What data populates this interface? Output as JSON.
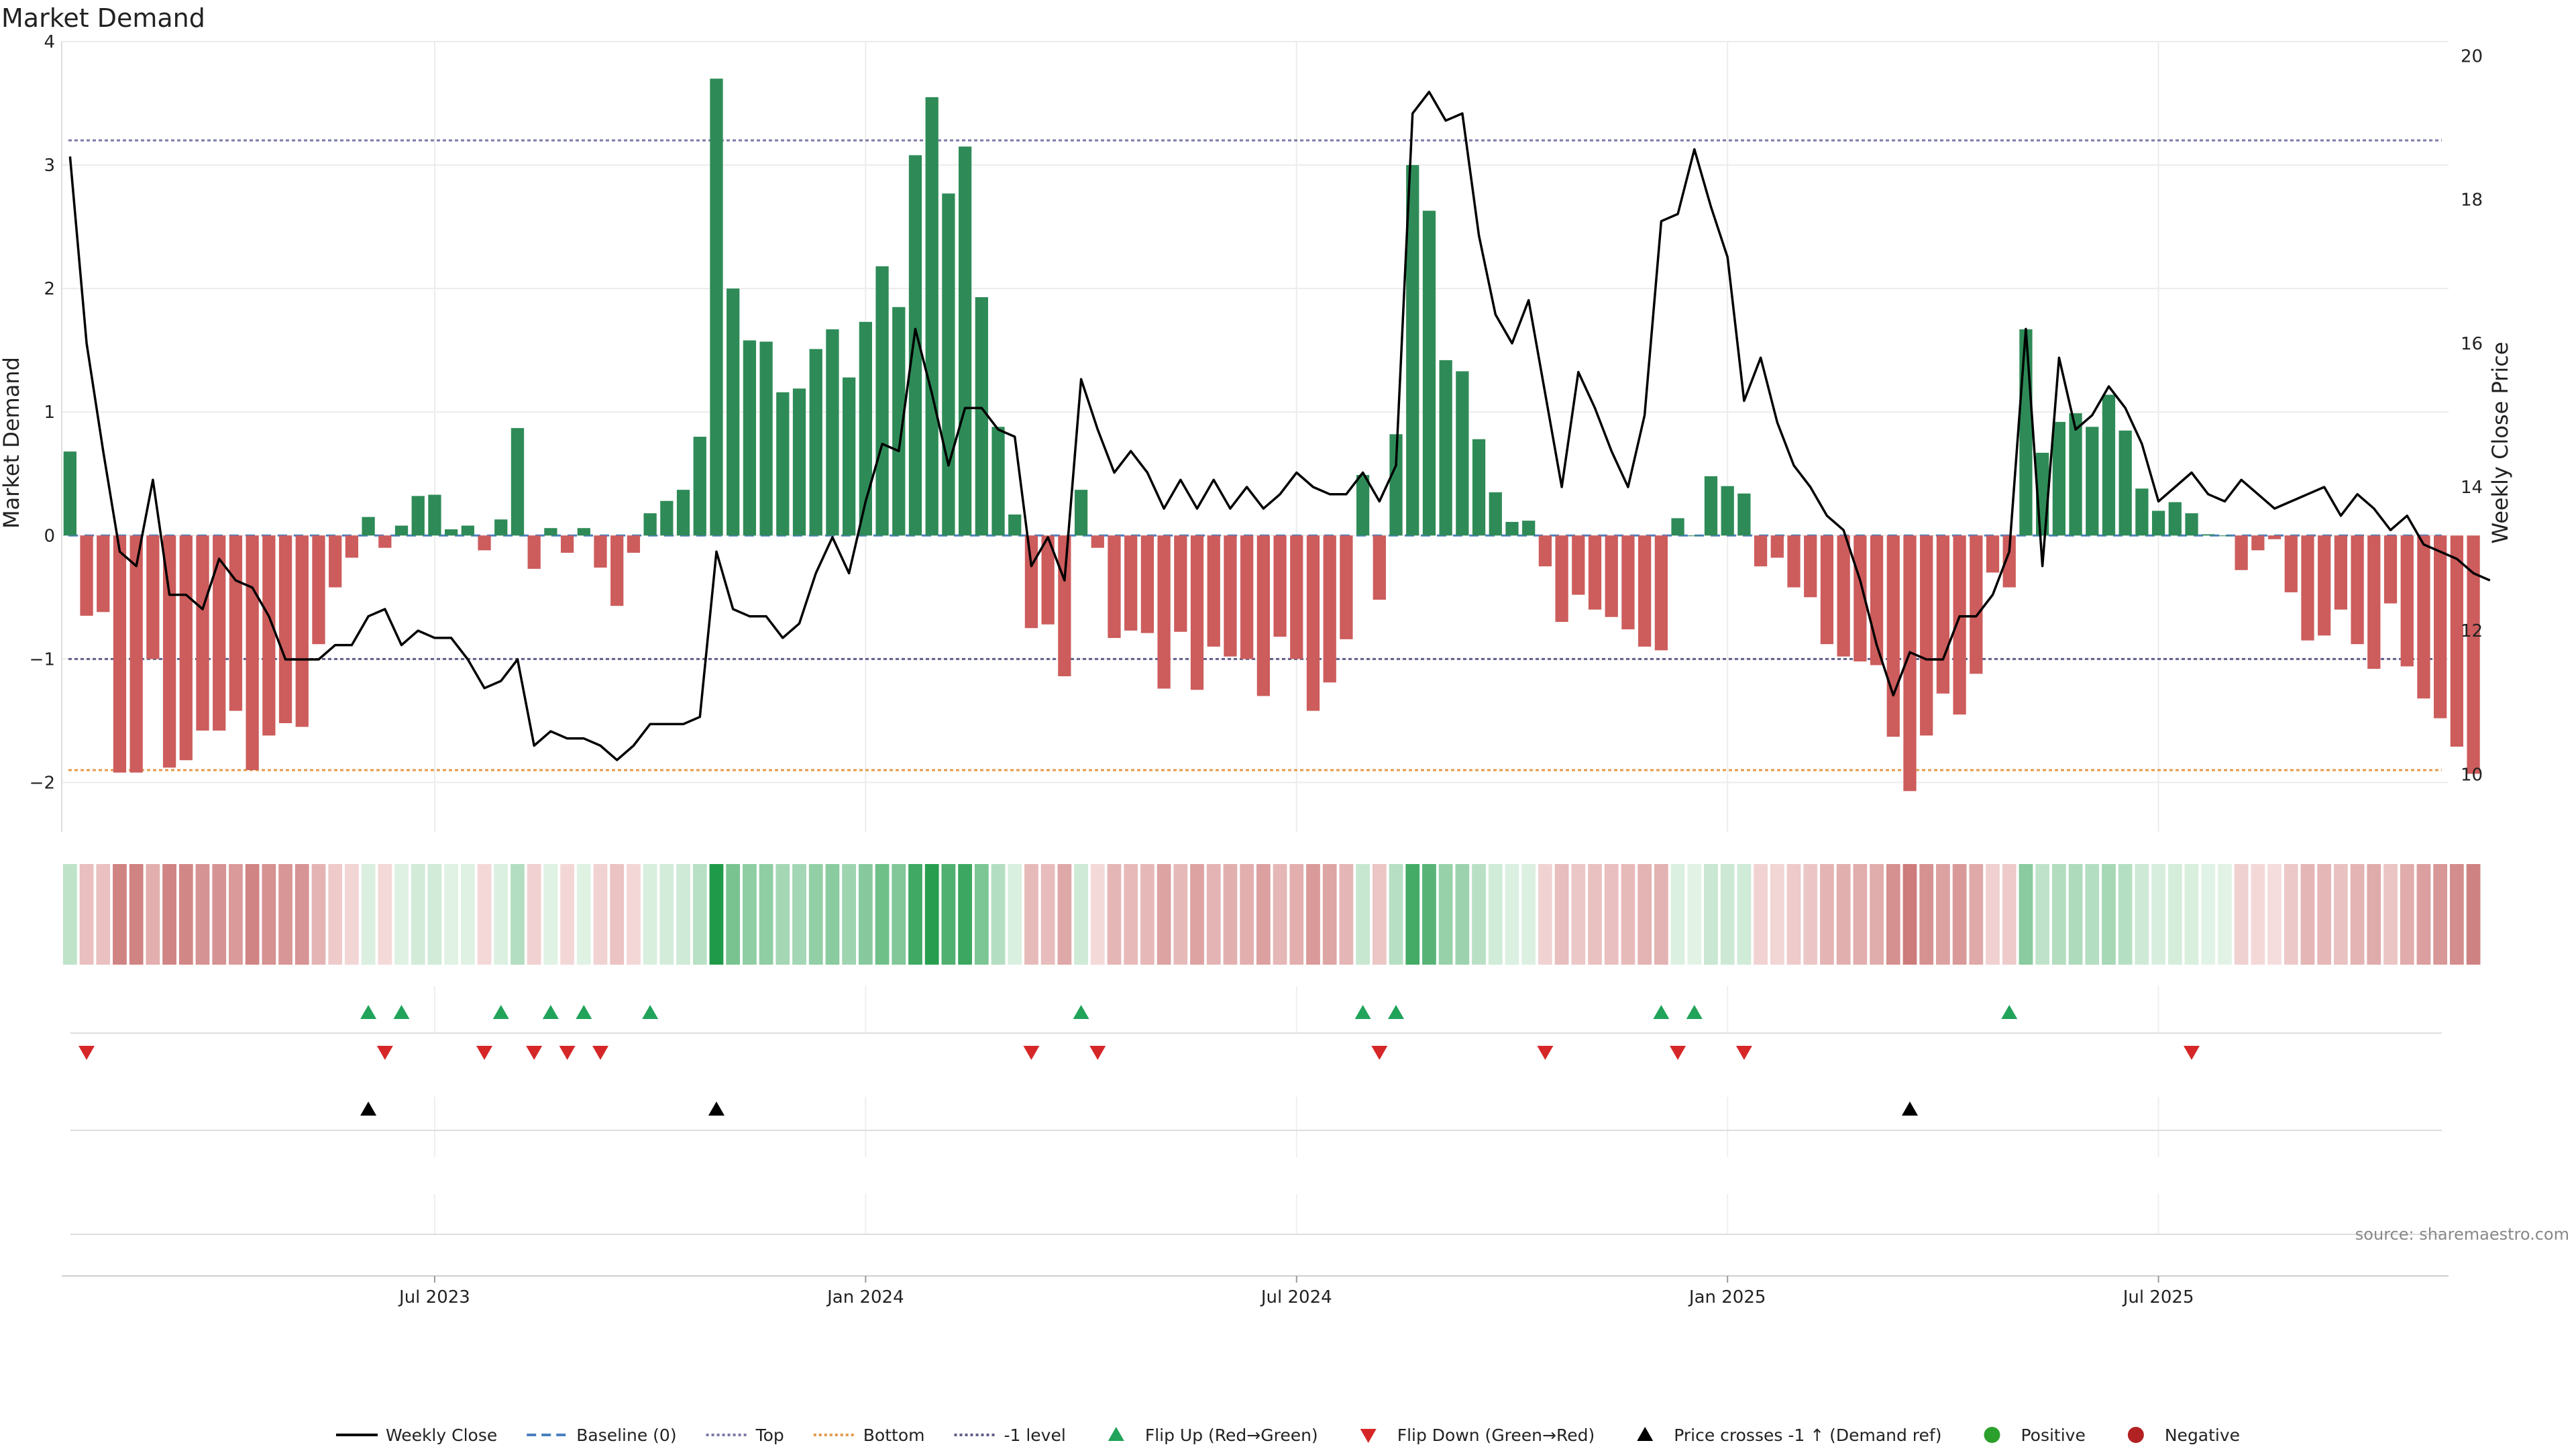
{
  "chart_data": {
    "type": "bar",
    "title": "Market Demand",
    "ylabel": "Market Demand",
    "y2label": "Weekly Close Price",
    "source": "source: sharemaestro.com",
    "ylim": [
      -2.4,
      4.0
    ],
    "y_ticks": [
      4,
      3,
      2,
      1,
      0,
      -1,
      -2
    ],
    "y2lim": [
      9.2,
      20.2
    ],
    "y2_ticks": [
      20,
      18,
      16,
      14,
      12,
      10
    ],
    "levels": {
      "top": 3.2,
      "bottom": -1.9,
      "minus_one": -1.0,
      "baseline": 0
    },
    "x_ticks": [
      {
        "label": "Jul 2023",
        "index": 22
      },
      {
        "label": "Jan 2024",
        "index": 48
      },
      {
        "label": "Jul 2024",
        "index": 74
      },
      {
        "label": "Jan 2025",
        "index": 100
      },
      {
        "label": "Jul 2025",
        "index": 126
      }
    ],
    "weeks": 144,
    "demand": [
      0.68,
      -0.65,
      -0.62,
      -1.92,
      -1.92,
      -1.0,
      -1.88,
      -1.82,
      -1.58,
      -1.58,
      -1.42,
      -1.9,
      -1.62,
      -1.52,
      -1.55,
      -0.88,
      -0.42,
      -0.18,
      0.15,
      -0.1,
      0.08,
      0.32,
      0.33,
      0.05,
      0.08,
      -0.12,
      0.13,
      0.87,
      -0.27,
      0.06,
      -0.14,
      0.06,
      -0.26,
      -0.57,
      -0.14,
      0.18,
      0.28,
      0.37,
      0.8,
      3.7,
      2.0,
      1.58,
      1.57,
      1.16,
      1.19,
      1.51,
      1.67,
      1.28,
      1.73,
      2.18,
      1.85,
      3.08,
      3.55,
      2.77,
      3.15,
      1.93,
      0.88,
      0.17,
      -0.75,
      -0.72,
      -1.14,
      0.37,
      -0.1,
      -0.83,
      -0.77,
      -0.79,
      -1.24,
      -0.78,
      -1.25,
      -0.9,
      -0.98,
      -1.0,
      -1.3,
      -0.82,
      -1.0,
      -1.42,
      -1.19,
      -0.84,
      0.49,
      -0.52,
      0.82,
      3.0,
      2.63,
      1.42,
      1.33,
      0.78,
      0.35,
      0.11,
      0.12,
      -0.25,
      -0.7,
      -0.48,
      -0.6,
      -0.66,
      -0.76,
      -0.9,
      -0.93,
      0.14,
      0.0,
      0.48,
      0.4,
      0.34,
      -0.25,
      -0.18,
      -0.42,
      -0.5,
      -0.88,
      -0.98,
      -1.02,
      -1.05,
      -1.63,
      -2.07,
      -1.62,
      -1.28,
      -1.45,
      -1.12,
      -0.3,
      -0.42,
      1.67,
      0.67,
      0.92,
      0.99,
      0.88,
      1.14,
      0.85,
      0.38,
      0.2,
      0.27,
      0.18,
      0.01,
      0.0,
      -0.28,
      -0.12,
      -0.03,
      -0.46,
      -0.85,
      -0.81,
      -0.6,
      -0.88,
      -1.08,
      -0.55,
      -1.06,
      -1.32,
      -1.48,
      -1.71,
      -1.93
    ],
    "weekly_close": [
      18.6,
      16.0,
      14.5,
      13.1,
      12.9,
      14.1,
      12.5,
      12.5,
      12.3,
      13.0,
      12.7,
      12.6,
      12.2,
      11.6,
      11.6,
      11.6,
      11.8,
      11.8,
      12.2,
      12.3,
      11.8,
      12.0,
      11.9,
      11.9,
      11.6,
      11.2,
      11.3,
      11.6,
      10.4,
      10.6,
      10.5,
      10.5,
      10.4,
      10.2,
      10.4,
      10.7,
      10.7,
      10.7,
      10.8,
      13.1,
      12.3,
      12.2,
      12.2,
      11.9,
      12.1,
      12.8,
      13.3,
      12.8,
      13.8,
      14.6,
      14.5,
      16.2,
      15.3,
      14.3,
      15.1,
      15.1,
      14.8,
      14.7,
      12.9,
      13.3,
      12.7,
      15.5,
      14.8,
      14.2,
      14.5,
      14.2,
      13.7,
      14.1,
      13.7,
      14.1,
      13.7,
      14.0,
      13.7,
      13.9,
      14.2,
      14.0,
      13.9,
      13.9,
      14.2,
      13.8,
      14.3,
      19.2,
      19.5,
      19.1,
      19.2,
      17.5,
      16.4,
      16.0,
      16.6,
      15.3,
      14.0,
      15.6,
      15.1,
      14.5,
      14.0,
      15.0,
      17.7,
      17.8,
      18.7,
      17.9,
      17.2,
      15.2,
      15.8,
      14.9,
      14.3,
      14.0,
      13.6,
      13.4,
      12.7,
      11.8,
      11.1,
      11.7,
      11.6,
      11.6,
      12.2,
      12.2,
      12.5,
      13.1,
      16.2,
      12.9,
      15.8,
      14.8,
      15.0,
      15.4,
      15.1,
      14.6,
      13.8,
      14.0,
      14.2,
      13.9,
      13.8,
      14.1,
      13.9,
      13.7,
      13.8,
      13.9,
      14.0,
      13.6,
      13.9,
      13.7,
      13.4,
      13.6,
      13.2,
      13.1,
      13.0,
      12.8,
      12.7
    ],
    "flip_up": [
      18,
      20,
      26,
      29,
      31,
      35,
      61,
      78,
      80,
      96,
      98,
      117
    ],
    "flip_down": [
      1,
      19,
      25,
      28,
      30,
      32,
      58,
      62,
      79,
      89,
      97,
      101,
      128
    ],
    "price_cross_up": [
      18,
      39,
      111
    ],
    "colors": {
      "positive": "#2e8b57",
      "negative": "#cd5c5c",
      "price": "#000000",
      "baseline": "#4a7fc0",
      "top": "#7a7aa8",
      "bottom": "#e39a4a",
      "minus_one": "#5f5f8a",
      "flip_up": "#21a35a",
      "flip_down": "#d62728",
      "cross": "#000000",
      "pos_dot": "#2ca02c",
      "neg_dot": "#b22222"
    },
    "legend": [
      {
        "label": "Weekly Close",
        "kind": "line",
        "color": "#000000"
      },
      {
        "label": "Baseline (0)",
        "kind": "dash",
        "color": "#4a7fc0"
      },
      {
        "label": "Top",
        "kind": "dot",
        "color": "#7a7aa8"
      },
      {
        "label": "Bottom",
        "kind": "dot",
        "color": "#e39a4a"
      },
      {
        "label": "-1 level",
        "kind": "dot",
        "color": "#5f5f8a"
      },
      {
        "label": "Flip Up (Red→Green)",
        "kind": "tri-up",
        "color": "#21a35a"
      },
      {
        "label": "Flip Down (Green→Red)",
        "kind": "tri-down",
        "color": "#d62728"
      },
      {
        "label": "Price crosses -1 ↑ (Demand ref)",
        "kind": "tri-up",
        "color": "#000000"
      },
      {
        "label": "Positive",
        "kind": "circle",
        "color": "#2ca02c"
      },
      {
        "label": "Negative",
        "kind": "circle",
        "color": "#b22222"
      }
    ]
  }
}
